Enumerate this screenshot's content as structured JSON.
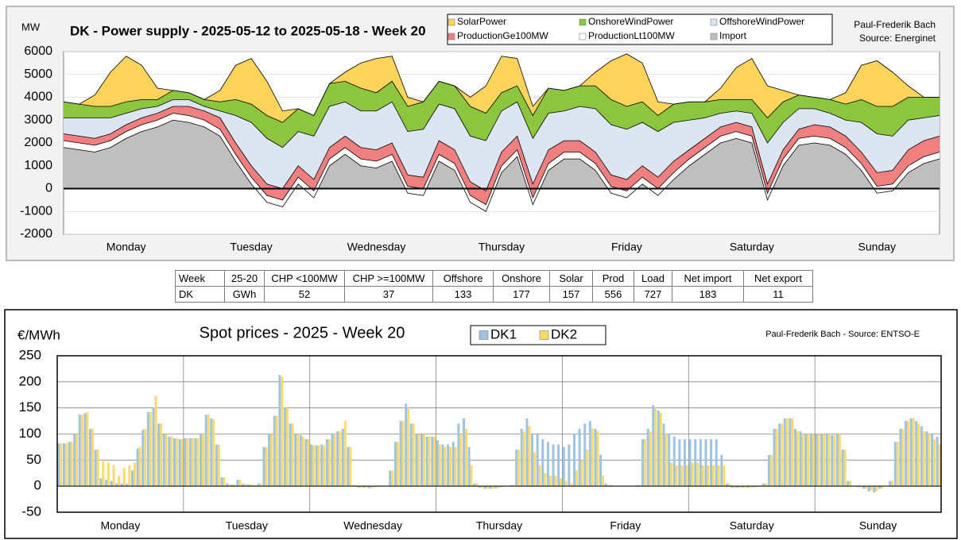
{
  "chart_data": [
    {
      "type": "area",
      "stacked": true,
      "grid": "y",
      "title": "DK - Power supply - 2025-05-12 to 2025-05-18 - Week 20",
      "ylabel": "MW",
      "annotations": [
        "Paul-Frederik Bach",
        "Source: Energinet"
      ],
      "x": [
        0,
        3,
        6,
        9,
        12,
        15,
        18,
        21,
        24,
        27,
        30,
        33,
        36,
        39,
        42,
        45,
        48,
        51,
        54,
        57,
        60,
        63,
        66,
        69,
        72,
        75,
        78,
        81,
        84,
        87,
        90,
        93,
        96,
        99,
        102,
        105,
        108,
        111,
        114,
        117,
        120,
        123,
        126,
        129,
        132,
        135,
        138,
        141,
        144,
        147,
        150,
        153,
        156,
        159,
        162,
        165,
        168
      ],
      "xlim": [
        0,
        168
      ],
      "xticks": [
        {
          "value": 12,
          "label": "Monday"
        },
        {
          "value": 36,
          "label": "Tuesday"
        },
        {
          "value": 60,
          "label": "Wednesday"
        },
        {
          "value": 84,
          "label": "Thursday"
        },
        {
          "value": 108,
          "label": "Friday"
        },
        {
          "value": 132,
          "label": "Saturday"
        },
        {
          "value": 156,
          "label": "Sunday"
        }
      ],
      "ylim": [
        -2000,
        6000
      ],
      "yticks": [
        -2000,
        -1000,
        0,
        1000,
        2000,
        3000,
        4000,
        5000,
        6000
      ],
      "series": [
        {
          "name": "Import",
          "color": "#bfbfbf",
          "values": [
            1800,
            1700,
            1600,
            1800,
            2200,
            2500,
            2700,
            3000,
            2900,
            2700,
            2300,
            1200,
            200,
            -600,
            -800,
            200,
            -400,
            1000,
            1500,
            1000,
            900,
            1200,
            -200,
            -300,
            1200,
            800,
            -600,
            -1000,
            700,
            1400,
            -700,
            800,
            1300,
            1300,
            800,
            -200,
            -400,
            200,
            -300,
            400,
            1000,
            1500,
            2000,
            2200,
            2000,
            -500,
            1000,
            1900,
            2000,
            1900,
            1500,
            800,
            -200,
            -100,
            700,
            1100,
            1300
          ]
        },
        {
          "name": "ProductionLt100MW",
          "color": "#ffffff",
          "values": [
            300,
            300,
            300,
            300,
            300,
            300,
            300,
            300,
            300,
            300,
            300,
            300,
            300,
            300,
            300,
            300,
            300,
            300,
            300,
            300,
            300,
            300,
            300,
            300,
            300,
            300,
            300,
            300,
            300,
            300,
            300,
            300,
            300,
            300,
            300,
            300,
            300,
            300,
            300,
            300,
            300,
            300,
            300,
            300,
            300,
            300,
            300,
            300,
            300,
            300,
            300,
            300,
            300,
            300,
            300,
            300,
            300
          ]
        },
        {
          "name": "ProductionGe100MW",
          "color": "#f08080",
          "values": [
            300,
            300,
            300,
            300,
            300,
            300,
            300,
            300,
            400,
            400,
            500,
            500,
            500,
            500,
            500,
            500,
            500,
            500,
            500,
            500,
            500,
            500,
            500,
            500,
            600,
            600,
            600,
            600,
            600,
            600,
            600,
            600,
            500,
            500,
            500,
            500,
            500,
            500,
            500,
            500,
            400,
            400,
            400,
            400,
            400,
            400,
            400,
            400,
            500,
            500,
            500,
            500,
            600,
            600,
            700,
            700,
            700
          ]
        },
        {
          "name": "OffshoreWindPower",
          "color": "#dce6f2",
          "values": [
            700,
            800,
            900,
            700,
            500,
            400,
            300,
            300,
            300,
            200,
            300,
            1200,
            1900,
            2000,
            1800,
            1500,
            1900,
            1800,
            1500,
            1600,
            1700,
            1800,
            1900,
            2100,
            1600,
            1800,
            2000,
            2200,
            1800,
            1500,
            2000,
            1600,
            1300,
            1500,
            1900,
            2200,
            2200,
            1900,
            2000,
            1700,
            1300,
            900,
            600,
            500,
            600,
            1800,
            1200,
            900,
            700,
            600,
            700,
            1300,
            1700,
            1500,
            1300,
            1000,
            900
          ]
        },
        {
          "name": "OnshoreWindPower",
          "color": "#8cc63f",
          "values": [
            700,
            600,
            500,
            500,
            500,
            400,
            300,
            400,
            300,
            300,
            400,
            700,
            800,
            1000,
            1100,
            1000,
            900,
            1000,
            900,
            1000,
            800,
            900,
            1100,
            1200,
            1000,
            1000,
            1300,
            1200,
            800,
            700,
            1000,
            1100,
            900,
            900,
            1000,
            1100,
            1000,
            900,
            700,
            800,
            800,
            700,
            600,
            500,
            600,
            1100,
            900,
            600,
            500,
            600,
            700,
            1000,
            1200,
            1300,
            1000,
            900,
            800
          ]
        },
        {
          "name": "SolarPower",
          "color": "#fdd35c",
          "values": [
            0,
            0,
            500,
            1500,
            2000,
            1500,
            500,
            0,
            0,
            0,
            500,
            1500,
            2000,
            1500,
            500,
            0,
            0,
            0,
            400,
            1100,
            1500,
            1100,
            400,
            0,
            0,
            0,
            400,
            1200,
            1600,
            1200,
            400,
            0,
            0,
            0,
            600,
            1700,
            2300,
            1700,
            600,
            0,
            0,
            0,
            500,
            1400,
            1800,
            1400,
            500,
            0,
            0,
            0,
            500,
            1500,
            2000,
            1500,
            500,
            0,
            0
          ]
        }
      ]
    },
    {
      "type": "bar",
      "grid": "both",
      "title": "Spot prices - 2025 - Week 20",
      "ylabel": "€/MWh",
      "annotations": [
        "Paul-Frederik Bach - Source: ENTSO-E"
      ],
      "x": [
        0,
        1,
        2,
        3,
        4,
        5,
        6,
        7,
        8,
        9,
        10,
        11,
        12,
        13,
        14,
        15,
        16,
        17,
        18,
        19,
        20,
        21,
        22,
        23,
        24,
        25,
        26,
        27,
        28,
        29,
        30,
        31,
        32,
        33,
        34,
        35,
        36,
        37,
        38,
        39,
        40,
        41,
        42,
        43,
        44,
        45,
        46,
        47,
        48,
        49,
        50,
        51,
        52,
        53,
        54,
        55,
        56,
        57,
        58,
        59,
        60,
        61,
        62,
        63,
        64,
        65,
        66,
        67,
        68,
        69,
        70,
        71,
        72,
        73,
        74,
        75,
        76,
        77,
        78,
        79,
        80,
        81,
        82,
        83,
        84,
        85,
        86,
        87,
        88,
        89,
        90,
        91,
        92,
        93,
        94,
        95,
        96,
        97,
        98,
        99,
        100,
        101,
        102,
        103,
        104,
        105,
        106,
        107,
        108,
        109,
        110,
        111,
        112,
        113,
        114,
        115,
        116,
        117,
        118,
        119,
        120,
        121,
        122,
        123,
        124,
        125,
        126,
        127,
        128,
        129,
        130,
        131,
        132,
        133,
        134,
        135,
        136,
        137,
        138,
        139,
        140,
        141,
        142,
        143,
        144,
        145,
        146,
        147,
        148,
        149,
        150,
        151,
        152,
        153,
        154,
        155,
        156,
        157,
        158,
        159,
        160,
        161,
        162,
        163,
        164,
        165,
        166,
        167
      ],
      "xlim": [
        0,
        168
      ],
      "xticks": [
        {
          "value": 12,
          "label": "Monday"
        },
        {
          "value": 36,
          "label": "Tuesday"
        },
        {
          "value": 60,
          "label": "Wednesday"
        },
        {
          "value": 84,
          "label": "Thursday"
        },
        {
          "value": 108,
          "label": "Friday"
        },
        {
          "value": 132,
          "label": "Saturday"
        },
        {
          "value": 156,
          "label": "Sunday"
        }
      ],
      "ylim": [
        -50,
        250
      ],
      "yticks": [
        -50,
        0,
        50,
        100,
        150,
        200,
        250
      ],
      "series": [
        {
          "name": "DK1",
          "color": "#9dc3e6",
          "values": [
            82,
            82,
            85,
            100,
            137,
            140,
            110,
            70,
            15,
            12,
            10,
            5,
            5,
            5,
            30,
            72,
            108,
            142,
            150,
            120,
            100,
            95,
            92,
            90,
            92,
            92,
            92,
            100,
            137,
            130,
            80,
            17,
            5,
            3,
            12,
            4,
            3,
            2,
            5,
            75,
            100,
            135,
            213,
            150,
            120,
            100,
            98,
            90,
            80,
            78,
            80,
            90,
            100,
            105,
            110,
            75,
            2,
            -3,
            -3,
            -4,
            -2,
            -1,
            0,
            30,
            85,
            125,
            158,
            120,
            100,
            100,
            95,
            95,
            88,
            80,
            80,
            85,
            120,
            130,
            75,
            5,
            -3,
            -5,
            -5,
            -4,
            -2,
            0,
            2,
            70,
            110,
            130,
            100,
            100,
            90,
            85,
            80,
            80,
            75,
            80,
            100,
            110,
            120,
            125,
            110,
            60,
            5,
            2,
            0,
            0,
            0,
            0,
            2,
            90,
            110,
            155,
            145,
            120,
            100,
            95,
            90,
            90,
            90,
            90,
            90,
            90,
            90,
            90,
            60,
            5,
            -3,
            -3,
            -3,
            -3,
            -2,
            -1,
            5,
            60,
            110,
            120,
            130,
            130,
            110,
            105,
            100,
            100,
            100,
            100,
            100,
            98,
            100,
            70,
            10,
            0,
            -2,
            -5,
            -10,
            -12,
            -5,
            0,
            10,
            85,
            110,
            125,
            130,
            125,
            115,
            105,
            100,
            95
          ]
        },
        {
          "name": "DK2",
          "color": "#ffd966",
          "values": [
            82,
            82,
            85,
            100,
            137,
            142,
            110,
            70,
            48,
            45,
            40,
            20,
            35,
            40,
            45,
            75,
            110,
            142,
            173,
            120,
            100,
            95,
            92,
            90,
            92,
            92,
            92,
            100,
            137,
            128,
            80,
            17,
            3,
            3,
            12,
            4,
            3,
            2,
            5,
            75,
            100,
            135,
            210,
            150,
            120,
            100,
            95,
            90,
            78,
            78,
            78,
            90,
            100,
            105,
            125,
            75,
            2,
            -3,
            -3,
            -4,
            -2,
            -1,
            0,
            30,
            85,
            125,
            150,
            120,
            100,
            100,
            95,
            95,
            80,
            75,
            75,
            75,
            100,
            110,
            40,
            5,
            -3,
            -5,
            -5,
            -4,
            -2,
            0,
            2,
            70,
            105,
            115,
            65,
            40,
            25,
            20,
            20,
            15,
            10,
            5,
            30,
            50,
            70,
            110,
            105,
            20,
            2,
            0,
            0,
            0,
            0,
            0,
            2,
            90,
            105,
            150,
            140,
            100,
            45,
            40,
            40,
            40,
            45,
            45,
            40,
            40,
            40,
            40,
            40,
            5,
            -3,
            -3,
            -3,
            -3,
            -2,
            -1,
            5,
            60,
            110,
            120,
            130,
            130,
            105,
            100,
            100,
            100,
            100,
            100,
            100,
            98,
            100,
            70,
            10,
            0,
            -2,
            -5,
            -8,
            -10,
            -5,
            0,
            10,
            85,
            110,
            125,
            130,
            120,
            105,
            100,
            90,
            80
          ]
        }
      ]
    }
  ],
  "table": {
    "header": [
      "Week",
      "25-20",
      "CHP <100MW",
      "CHP >=100MW",
      "Offshore",
      "Onshore",
      "Solar",
      "Prod",
      "Load",
      "Net import",
      "Net export"
    ],
    "rows": [
      [
        "DK",
        "GWh",
        52,
        37,
        133,
        177,
        157,
        556,
        727,
        183,
        11
      ]
    ]
  }
}
